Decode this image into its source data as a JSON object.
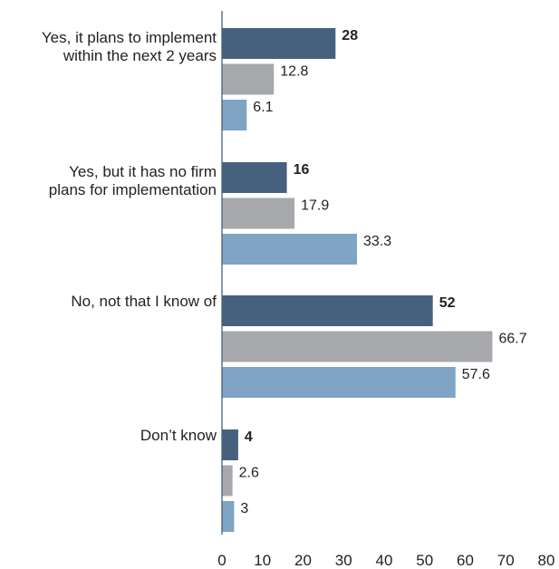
{
  "chart_data": {
    "type": "bar",
    "orientation": "horizontal",
    "categories": [
      [
        "Yes, it plans to implement",
        "within the next 2 years"
      ],
      [
        "Yes, but it has no firm",
        "plans for implementation"
      ],
      [
        "No, not that I know of"
      ],
      [
        "Don’t know"
      ]
    ],
    "series": [
      {
        "values": [
          28,
          16,
          52,
          4
        ],
        "labels": [
          "28",
          "16",
          "52",
          "4"
        ],
        "color": "#46617D",
        "label_bold": true
      },
      {
        "values": [
          12.8,
          17.9,
          66.7,
          2.6
        ],
        "labels": [
          "12.8",
          "17.9",
          "66.7",
          "2.6"
        ],
        "color": "#A6A8AB",
        "label_bold": false
      },
      {
        "values": [
          6.1,
          33.3,
          57.6,
          3
        ],
        "labels": [
          "6.1",
          "33.3",
          "57.6",
          "3"
        ],
        "color": "#7FA4C4",
        "label_bold": false
      }
    ],
    "xlim": [
      0,
      80
    ],
    "xticks": [
      "0",
      "10",
      "20",
      "30",
      "40",
      "50",
      "60",
      "70",
      "80"
    ],
    "grid": false,
    "legend": "none",
    "axis_color": "#46617D"
  }
}
